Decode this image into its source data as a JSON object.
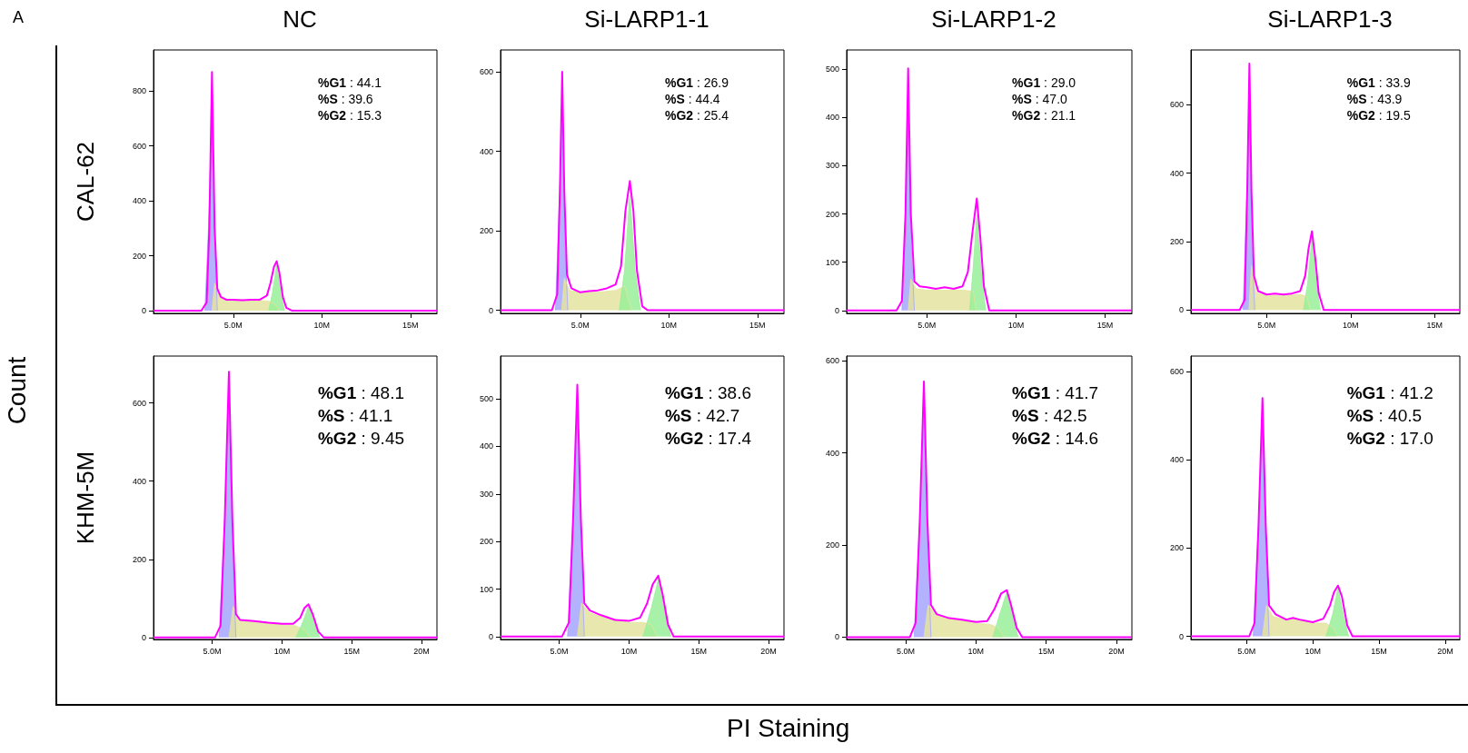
{
  "chart_data": [
    {
      "type": "line",
      "title": "NC",
      "ylabel": "CAL-62",
      "xlim": [
        0.5,
        16.5
      ],
      "ylim": [
        -10,
        950
      ],
      "xticks": [
        {
          "value": 5,
          "label": "5.0M"
        },
        {
          "value": 10,
          "label": "10M"
        },
        {
          "value": 15,
          "label": "15M"
        }
      ],
      "yticks": [
        0,
        200,
        400,
        600,
        800
      ],
      "annotations": [
        "%G1 : 44.1",
        "%S : 39.6",
        "%G2 : 15.3"
      ],
      "series": [
        {
          "type": "area",
          "color": "#a5a5ff",
          "x": [
            3.4,
            3.6,
            3.8,
            3.95,
            4.1
          ],
          "values": [
            0,
            300,
            720,
            300,
            0
          ]
        },
        {
          "type": "area",
          "color": "#e3e3a0",
          "x": [
            3.8,
            3.95,
            4.3,
            5,
            6,
            7,
            7.4,
            7.6
          ],
          "values": [
            0,
            100,
            45,
            40,
            38,
            35,
            20,
            0
          ]
        },
        {
          "type": "area",
          "color": "#99ee99",
          "x": [
            7.0,
            7.2,
            7.45,
            7.7,
            7.9
          ],
          "values": [
            0,
            60,
            165,
            60,
            0
          ]
        },
        {
          "type": "line",
          "color": "#ff00ff",
          "x": [
            0.5,
            3.2,
            3.5,
            3.65,
            3.8,
            3.95,
            4.1,
            4.3,
            4.6,
            5.0,
            5.5,
            6.0,
            6.5,
            6.9,
            7.1,
            7.3,
            7.45,
            7.6,
            7.8,
            8.0,
            8.3,
            16.5
          ],
          "values": [
            0,
            0,
            30,
            300,
            870,
            300,
            80,
            50,
            40,
            40,
            38,
            40,
            40,
            55,
            100,
            160,
            180,
            140,
            50,
            10,
            0,
            0
          ]
        }
      ]
    },
    {
      "type": "line",
      "title": "Si-LARP1-1",
      "xlim": [
        0.5,
        16.5
      ],
      "ylim": [
        -8,
        655
      ],
      "xticks": [
        {
          "value": 5,
          "label": "5.0M"
        },
        {
          "value": 10,
          "label": "10M"
        },
        {
          "value": 15,
          "label": "15M"
        }
      ],
      "yticks": [
        0,
        200,
        400,
        600
      ],
      "annotations": [
        "%G1 : 26.9",
        "%S : 44.4",
        "%G2 : 25.4"
      ],
      "series": [
        {
          "type": "area",
          "color": "#a5a5ff",
          "x": [
            3.6,
            3.8,
            3.98,
            4.15,
            4.3
          ],
          "values": [
            0,
            250,
            470,
            150,
            0
          ]
        },
        {
          "type": "area",
          "color": "#e3e3a0",
          "x": [
            3.95,
            4.1,
            4.4,
            5,
            6,
            7,
            7.5,
            7.7,
            7.9
          ],
          "values": [
            0,
            80,
            50,
            45,
            45,
            50,
            60,
            30,
            0
          ]
        },
        {
          "type": "area",
          "color": "#99ee99",
          "x": [
            7.2,
            7.5,
            7.8,
            8.1,
            8.4
          ],
          "values": [
            0,
            100,
            290,
            100,
            0
          ]
        },
        {
          "type": "line",
          "color": "#ff00ff",
          "x": [
            0.5,
            3.4,
            3.7,
            3.85,
            3.98,
            4.1,
            4.25,
            4.5,
            5,
            5.5,
            6,
            6.5,
            7,
            7.3,
            7.55,
            7.8,
            8.0,
            8.2,
            8.5,
            8.8,
            16.5
          ],
          "values": [
            0,
            0,
            40,
            300,
            600,
            300,
            90,
            55,
            45,
            48,
            50,
            55,
            65,
            110,
            250,
            325,
            250,
            100,
            10,
            0,
            0
          ]
        }
      ]
    },
    {
      "type": "line",
      "title": "Si-LARP1-2",
      "xlim": [
        0.5,
        16.5
      ],
      "ylim": [
        -6,
        540
      ],
      "xticks": [
        {
          "value": 5,
          "label": "5.0M"
        },
        {
          "value": 10,
          "label": "10M"
        },
        {
          "value": 15,
          "label": "15M"
        }
      ],
      "yticks": [
        0,
        100,
        200,
        300,
        400,
        500
      ],
      "annotations": [
        "%G1 : 29.0",
        "%S : 47.0",
        "%G2 : 21.1"
      ],
      "series": [
        {
          "type": "area",
          "color": "#a5a5ff",
          "x": [
            3.6,
            3.8,
            3.95,
            4.1,
            4.3
          ],
          "values": [
            0,
            200,
            430,
            150,
            0
          ]
        },
        {
          "type": "area",
          "color": "#e3e3a0",
          "x": [
            3.95,
            4.1,
            4.4,
            5,
            6,
            7,
            7.6,
            7.75
          ],
          "values": [
            0,
            65,
            45,
            42,
            42,
            42,
            40,
            0
          ]
        },
        {
          "type": "area",
          "color": "#99ee99",
          "x": [
            7.4,
            7.6,
            7.8,
            8.05,
            8.3
          ],
          "values": [
            0,
            90,
            200,
            80,
            0
          ]
        },
        {
          "type": "line",
          "color": "#ff00ff",
          "x": [
            0.5,
            3.3,
            3.6,
            3.8,
            3.95,
            4.1,
            4.3,
            4.6,
            5,
            5.5,
            6,
            6.5,
            7,
            7.3,
            7.55,
            7.8,
            8.0,
            8.2,
            8.5,
            16.5
          ],
          "values": [
            0,
            0,
            20,
            200,
            502,
            200,
            60,
            50,
            48,
            45,
            48,
            45,
            50,
            80,
            160,
            232,
            150,
            50,
            0,
            0
          ]
        }
      ]
    },
    {
      "type": "line",
      "title": "Si-LARP1-3",
      "xlim": [
        0.5,
        16.5
      ],
      "ylim": [
        -10,
        760
      ],
      "xticks": [
        {
          "value": 5,
          "label": "5.0M"
        },
        {
          "value": 10,
          "label": "10M"
        },
        {
          "value": 15,
          "label": "15M"
        }
      ],
      "yticks": [
        0,
        200,
        400,
        600
      ],
      "annotations": [
        "%G1 : 33.9",
        "%S : 43.9",
        "%G2 : 19.5"
      ],
      "series": [
        {
          "type": "area",
          "color": "#a5a5ff",
          "x": [
            3.6,
            3.8,
            3.98,
            4.15,
            4.3
          ],
          "values": [
            0,
            300,
            560,
            150,
            0
          ]
        },
        {
          "type": "area",
          "color": "#e3e3a0",
          "x": [
            3.95,
            4.1,
            4.4,
            5,
            6,
            7,
            7.4,
            7.6
          ],
          "values": [
            0,
            130,
            50,
            42,
            42,
            45,
            40,
            0
          ]
        },
        {
          "type": "area",
          "color": "#99ee99",
          "x": [
            7.2,
            7.45,
            7.7,
            7.95,
            8.2
          ],
          "values": [
            0,
            80,
            210,
            80,
            0
          ]
        },
        {
          "type": "line",
          "color": "#ff00ff",
          "x": [
            0.5,
            3.4,
            3.7,
            3.85,
            3.98,
            4.1,
            4.25,
            4.5,
            5,
            5.5,
            6,
            6.5,
            7,
            7.3,
            7.5,
            7.7,
            7.9,
            8.1,
            8.4,
            16.5
          ],
          "values": [
            0,
            0,
            30,
            350,
            720,
            350,
            100,
            55,
            45,
            48,
            45,
            48,
            55,
            100,
            180,
            230,
            150,
            50,
            0,
            0
          ]
        }
      ]
    },
    {
      "type": "line",
      "ylabel": "KHM-5M",
      "xlim": [
        0.8,
        21.1
      ],
      "ylim": [
        -5,
        720
      ],
      "xticks": [
        {
          "value": 5,
          "label": "5.0M"
        },
        {
          "value": 10,
          "label": "10M"
        },
        {
          "value": 15,
          "label": "15M"
        },
        {
          "value": 20,
          "label": "20M"
        }
      ],
      "yticks": [
        0,
        200,
        400,
        600
      ],
      "annotations": [
        "%G1 : 48.1",
        "%S : 41.1",
        "%G2 : 9.45"
      ],
      "series": [
        {
          "type": "area",
          "color": "#a5a5ff",
          "x": [
            5.5,
            5.9,
            6.2,
            6.45,
            6.7
          ],
          "values": [
            0,
            300,
            620,
            250,
            0
          ]
        },
        {
          "type": "area",
          "color": "#e3e3a0",
          "x": [
            6.2,
            6.5,
            7,
            8,
            9,
            10,
            11,
            11.6,
            12
          ],
          "values": [
            0,
            80,
            42,
            40,
            36,
            33,
            30,
            20,
            0
          ]
        },
        {
          "type": "area",
          "color": "#99ee99",
          "x": [
            11.0,
            11.5,
            11.9,
            12.3,
            12.7
          ],
          "values": [
            0,
            40,
            80,
            40,
            0
          ]
        },
        {
          "type": "line",
          "color": "#ff00ff",
          "x": [
            0.8,
            5.2,
            5.6,
            5.9,
            6.2,
            6.45,
            6.7,
            7,
            8,
            9,
            10,
            10.8,
            11.3,
            11.6,
            11.9,
            12.2,
            12.6,
            13,
            21.1
          ],
          "values": [
            0,
            0,
            30,
            300,
            680,
            300,
            60,
            45,
            42,
            38,
            35,
            35,
            50,
            75,
            85,
            60,
            15,
            0,
            0
          ]
        }
      ]
    },
    {
      "type": "line",
      "xlim": [
        0.8,
        21.1
      ],
      "ylim": [
        -6,
        590
      ],
      "xticks": [
        {
          "value": 5,
          "label": "5.0M"
        },
        {
          "value": 10,
          "label": "10M"
        },
        {
          "value": 15,
          "label": "15M"
        },
        {
          "value": 20,
          "label": "20M"
        }
      ],
      "yticks": [
        0,
        100,
        200,
        300,
        400,
        500
      ],
      "annotations": [
        "%G1 : 38.6",
        "%S : 42.7",
        "%G2 : 17.4"
      ],
      "series": [
        {
          "type": "area",
          "color": "#a5a5ff",
          "x": [
            5.6,
            6.0,
            6.3,
            6.55,
            6.8
          ],
          "values": [
            0,
            250,
            470,
            200,
            0
          ]
        },
        {
          "type": "area",
          "color": "#e3e3a0",
          "x": [
            6.3,
            6.6,
            7.2,
            8,
            9,
            10,
            11,
            11.6,
            12
          ],
          "values": [
            0,
            70,
            50,
            42,
            34,
            30,
            30,
            25,
            0
          ]
        },
        {
          "type": "area",
          "color": "#99ee99",
          "x": [
            11.0,
            11.6,
            12.1,
            12.5,
            13
          ],
          "values": [
            0,
            60,
            120,
            60,
            0
          ]
        },
        {
          "type": "line",
          "color": "#ff00ff",
          "x": [
            0.8,
            5.2,
            5.7,
            6.0,
            6.3,
            6.55,
            6.8,
            7.2,
            8,
            9,
            10,
            10.8,
            11.3,
            11.7,
            12.1,
            12.4,
            12.8,
            13.2,
            21.1
          ],
          "values": [
            0,
            0,
            30,
            250,
            530,
            250,
            70,
            55,
            45,
            35,
            33,
            40,
            70,
            110,
            128,
            90,
            25,
            0,
            0
          ]
        }
      ]
    },
    {
      "type": "line",
      "xlim": [
        0.8,
        21.1
      ],
      "ylim": [
        -5,
        610
      ],
      "xticks": [
        {
          "value": 5,
          "label": "5.0M"
        },
        {
          "value": 10,
          "label": "10M"
        },
        {
          "value": 15,
          "label": "15M"
        },
        {
          "value": 20,
          "label": "20M"
        }
      ],
      "yticks": [
        0,
        200,
        400,
        600
      ],
      "annotations": [
        "%G1 : 41.7",
        "%S : 42.5",
        "%G2 : 14.6"
      ],
      "series": [
        {
          "type": "area",
          "color": "#a5a5ff",
          "x": [
            5.6,
            6.0,
            6.3,
            6.55,
            6.8
          ],
          "values": [
            0,
            250,
            490,
            200,
            0
          ]
        },
        {
          "type": "area",
          "color": "#e3e3a0",
          "x": [
            6.3,
            6.6,
            7.2,
            8,
            9,
            10,
            11,
            11.6,
            12
          ],
          "values": [
            0,
            70,
            48,
            42,
            36,
            30,
            28,
            20,
            0
          ]
        },
        {
          "type": "area",
          "color": "#99ee99",
          "x": [
            11.2,
            11.7,
            12.2,
            12.6,
            13
          ],
          "values": [
            0,
            50,
            98,
            50,
            0
          ]
        },
        {
          "type": "line",
          "color": "#ff00ff",
          "x": [
            0.8,
            5.3,
            5.7,
            6.0,
            6.3,
            6.55,
            6.8,
            7.2,
            8,
            9,
            10,
            10.8,
            11.3,
            11.8,
            12.2,
            12.5,
            12.9,
            13.3,
            21.1
          ],
          "values": [
            0,
            0,
            30,
            250,
            555,
            250,
            70,
            50,
            42,
            38,
            33,
            35,
            60,
            95,
            102,
            70,
            20,
            0,
            0
          ]
        }
      ]
    },
    {
      "type": "line",
      "xlim": [
        0.8,
        21.1
      ],
      "ylim": [
        -7,
        635
      ],
      "xticks": [
        {
          "value": 5,
          "label": "5.0M"
        },
        {
          "value": 10,
          "label": "10M"
        },
        {
          "value": 15,
          "label": "15M"
        },
        {
          "value": 20,
          "label": "20M"
        }
      ],
      "yticks": [
        0,
        200,
        400,
        600
      ],
      "annotations": [
        "%G1 : 41.2",
        "%S : 40.5",
        "%G2 : 17.0"
      ],
      "series": [
        {
          "type": "area",
          "color": "#a5a5ff",
          "x": [
            5.5,
            5.9,
            6.2,
            6.45,
            6.7
          ],
          "values": [
            0,
            250,
            500,
            200,
            0
          ]
        },
        {
          "type": "area",
          "color": "#e3e3a0",
          "x": [
            6.2,
            6.5,
            7,
            8,
            8.5,
            9,
            10,
            11,
            11.5,
            11.9
          ],
          "values": [
            0,
            70,
            45,
            38,
            40,
            36,
            30,
            30,
            20,
            0
          ]
        },
        {
          "type": "area",
          "color": "#99ee99",
          "x": [
            11.0,
            11.5,
            11.9,
            12.3,
            12.7
          ],
          "values": [
            0,
            50,
            110,
            50,
            0
          ]
        },
        {
          "type": "line",
          "color": "#ff00ff",
          "x": [
            0.8,
            5.2,
            5.6,
            5.9,
            6.2,
            6.45,
            6.7,
            7.2,
            8,
            8.5,
            9,
            10,
            10.8,
            11.3,
            11.6,
            11.9,
            12.2,
            12.6,
            13,
            21.1
          ],
          "values": [
            0,
            0,
            30,
            250,
            540,
            250,
            70,
            50,
            38,
            42,
            38,
            32,
            40,
            70,
            100,
            115,
            90,
            25,
            0,
            0
          ]
        }
      ]
    },
    {
      "type": "other",
      "xlabel": "PI Staining",
      "ylabel": "Count",
      "annotations": [
        "A"
      ]
    }
  ]
}
